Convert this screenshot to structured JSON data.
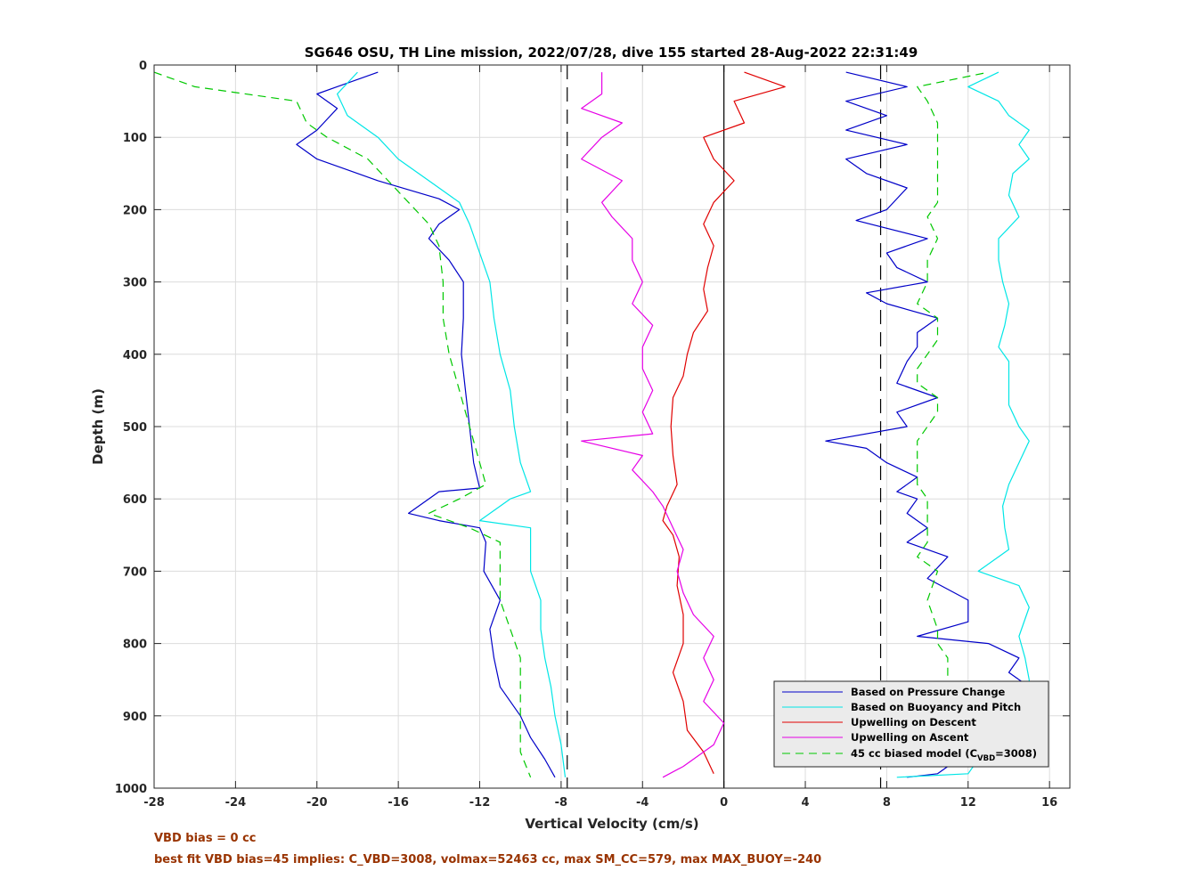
{
  "footer": {
    "line1": "VBD bias = 0 cc",
    "line2": "best fit VBD bias=45 implies: C_VBD=3008, volmax=52463 cc, max SM_CC=579, max MAX_BUOY=-240",
    "color": "#993300"
  },
  "chart_data": {
    "type": "line",
    "title": "SG646 OSU, TH Line mission, 2022/07/28, dive 155 started 28-Aug-2022 22:31:49",
    "xlabel": "Vertical Velocity (cm/s)",
    "ylabel": "Depth (m)",
    "xlim": [
      -28,
      17
    ],
    "ylim": [
      0,
      1000
    ],
    "y_reversed": true,
    "grid": true,
    "xticks": [
      -28,
      -24,
      -20,
      -16,
      -12,
      -8,
      -4,
      0,
      4,
      8,
      12,
      16
    ],
    "yticks": [
      0,
      100,
      200,
      300,
      400,
      500,
      600,
      700,
      800,
      900,
      1000
    ],
    "reference_lines": [
      {
        "x": -7.7,
        "style": "dashed",
        "color": "#000000"
      },
      {
        "x": 0,
        "style": "solid",
        "color": "#000000"
      },
      {
        "x": 7.7,
        "style": "dashed",
        "color": "#000000"
      }
    ],
    "legend": {
      "position": "bottom-right",
      "series_labels": [
        "Based on Pressure Change",
        "Based on Buoyancy and Pitch",
        "Upwelling on Descent",
        "Upwelling on Ascent"
      ],
      "biased_label_prefix": "45 cc biased model (C",
      "biased_label_sub": "VBD",
      "biased_label_suffix": "=3008)"
    },
    "series": [
      {
        "name": "Based on Pressure Change",
        "color": "#0000c8",
        "dash": false,
        "descent": [
          [
            -17,
            10
          ],
          [
            -20,
            40
          ],
          [
            -19,
            60
          ],
          [
            -20,
            90
          ],
          [
            -21,
            110
          ],
          [
            -20,
            130
          ],
          [
            -17,
            160
          ],
          [
            -14,
            185
          ],
          [
            -13,
            200
          ],
          [
            -14,
            220
          ],
          [
            -14.5,
            240
          ],
          [
            -13.5,
            270
          ],
          [
            -12.8,
            300
          ],
          [
            -12.8,
            350
          ],
          [
            -12.9,
            400
          ],
          [
            -12.7,
            450
          ],
          [
            -12.5,
            500
          ],
          [
            -12.3,
            550
          ],
          [
            -12,
            585
          ],
          [
            -14,
            590
          ],
          [
            -15.5,
            620
          ],
          [
            -14,
            630
          ],
          [
            -12,
            640
          ],
          [
            -11.7,
            660
          ],
          [
            -11.8,
            700
          ],
          [
            -11,
            740
          ],
          [
            -11.5,
            780
          ],
          [
            -11.3,
            820
          ],
          [
            -11,
            860
          ],
          [
            -10,
            900
          ],
          [
            -9.5,
            930
          ],
          [
            -8.8,
            960
          ],
          [
            -8.3,
            985
          ]
        ],
        "ascent": [
          [
            9,
            985
          ],
          [
            10.5,
            980
          ],
          [
            11.5,
            960
          ],
          [
            12,
            940
          ],
          [
            14,
            925
          ],
          [
            15.5,
            920
          ],
          [
            13,
            910
          ],
          [
            11,
            900
          ],
          [
            13,
            880
          ],
          [
            15,
            860
          ],
          [
            14,
            840
          ],
          [
            14.5,
            820
          ],
          [
            13,
            800
          ],
          [
            9.5,
            790
          ],
          [
            12,
            770
          ],
          [
            12,
            740
          ],
          [
            10,
            710
          ],
          [
            11,
            680
          ],
          [
            9,
            660
          ],
          [
            10,
            640
          ],
          [
            9,
            620
          ],
          [
            9.5,
            600
          ],
          [
            8.5,
            590
          ],
          [
            9.5,
            570
          ],
          [
            8,
            550
          ],
          [
            7,
            530
          ],
          [
            5,
            520
          ],
          [
            9,
            500
          ],
          [
            8.5,
            480
          ],
          [
            10.5,
            460
          ],
          [
            8.5,
            440
          ],
          [
            9,
            410
          ],
          [
            9.5,
            390
          ],
          [
            9.5,
            370
          ],
          [
            10.5,
            350
          ],
          [
            8,
            330
          ],
          [
            7,
            315
          ],
          [
            10,
            300
          ],
          [
            8.5,
            280
          ],
          [
            8,
            260
          ],
          [
            10,
            240
          ],
          [
            6.5,
            215
          ],
          [
            8,
            200
          ],
          [
            9,
            170
          ],
          [
            7,
            150
          ],
          [
            6,
            130
          ],
          [
            9,
            110
          ],
          [
            6,
            90
          ],
          [
            8,
            70
          ],
          [
            6,
            50
          ],
          [
            9,
            30
          ],
          [
            6,
            10
          ]
        ]
      },
      {
        "name": "Based on Buoyancy and Pitch",
        "color": "#00e6e6",
        "dash": false,
        "descent": [
          [
            -18,
            10
          ],
          [
            -19,
            40
          ],
          [
            -18.5,
            70
          ],
          [
            -17,
            100
          ],
          [
            -16,
            130
          ],
          [
            -14.5,
            160
          ],
          [
            -13,
            190
          ],
          [
            -12.5,
            220
          ],
          [
            -12,
            260
          ],
          [
            -11.5,
            300
          ],
          [
            -11.3,
            350
          ],
          [
            -11,
            400
          ],
          [
            -10.5,
            450
          ],
          [
            -10.3,
            500
          ],
          [
            -10,
            550
          ],
          [
            -9.5,
            590
          ],
          [
            -10.5,
            600
          ],
          [
            -12,
            630
          ],
          [
            -9.5,
            640
          ],
          [
            -9.5,
            700
          ],
          [
            -9,
            740
          ],
          [
            -9,
            780
          ],
          [
            -8.8,
            820
          ],
          [
            -8.5,
            860
          ],
          [
            -8.3,
            900
          ],
          [
            -8,
            940
          ],
          [
            -7.8,
            985
          ]
        ],
        "ascent": [
          [
            8.5,
            985
          ],
          [
            12,
            980
          ],
          [
            12.5,
            960
          ],
          [
            15,
            940
          ],
          [
            15.5,
            910
          ],
          [
            15,
            880
          ],
          [
            15,
            850
          ],
          [
            14.8,
            820
          ],
          [
            14.5,
            790
          ],
          [
            15,
            750
          ],
          [
            14.5,
            720
          ],
          [
            12.5,
            700
          ],
          [
            14,
            670
          ],
          [
            13.8,
            640
          ],
          [
            13.7,
            610
          ],
          [
            14,
            580
          ],
          [
            14.5,
            550
          ],
          [
            15,
            520
          ],
          [
            14.5,
            500
          ],
          [
            14,
            470
          ],
          [
            14,
            440
          ],
          [
            14,
            410
          ],
          [
            13.5,
            390
          ],
          [
            13.8,
            360
          ],
          [
            14,
            330
          ],
          [
            13.7,
            300
          ],
          [
            13.5,
            270
          ],
          [
            13.5,
            240
          ],
          [
            14.5,
            210
          ],
          [
            14,
            180
          ],
          [
            14.2,
            150
          ],
          [
            15,
            130
          ],
          [
            14.5,
            110
          ],
          [
            15,
            90
          ],
          [
            14,
            70
          ],
          [
            13.5,
            50
          ],
          [
            12,
            30
          ],
          [
            13.5,
            10
          ]
        ]
      },
      {
        "name": "Upwelling on Descent",
        "color": "#e00000",
        "dash": false,
        "descent": [
          [
            1,
            10
          ],
          [
            3,
            30
          ],
          [
            0.5,
            50
          ],
          [
            1,
            80
          ],
          [
            -1,
            100
          ],
          [
            -0.5,
            130
          ],
          [
            0.5,
            160
          ],
          [
            -0.5,
            190
          ],
          [
            -1,
            220
          ],
          [
            -0.5,
            250
          ],
          [
            -0.8,
            280
          ],
          [
            -1,
            310
          ],
          [
            -0.8,
            340
          ],
          [
            -1.5,
            370
          ],
          [
            -1.8,
            400
          ],
          [
            -2,
            430
          ],
          [
            -2.5,
            460
          ],
          [
            -2.6,
            500
          ],
          [
            -2.5,
            540
          ],
          [
            -2.3,
            580
          ],
          [
            -2.8,
            610
          ],
          [
            -3,
            630
          ],
          [
            -2.5,
            650
          ],
          [
            -2.2,
            680
          ],
          [
            -2.3,
            720
          ],
          [
            -2,
            760
          ],
          [
            -2,
            800
          ],
          [
            -2.5,
            840
          ],
          [
            -2,
            880
          ],
          [
            -1.8,
            920
          ],
          [
            -1,
            950
          ],
          [
            -0.5,
            980
          ]
        ]
      },
      {
        "name": "Upwelling on Ascent",
        "color": "#e600e6",
        "dash": false,
        "ascent": [
          [
            -6,
            10
          ],
          [
            -6,
            40
          ],
          [
            -7,
            60
          ],
          [
            -5,
            80
          ],
          [
            -6,
            100
          ],
          [
            -7,
            130
          ],
          [
            -5,
            160
          ],
          [
            -6,
            190
          ],
          [
            -5.5,
            210
          ],
          [
            -4.5,
            240
          ],
          [
            -4.5,
            270
          ],
          [
            -4,
            300
          ],
          [
            -4.5,
            330
          ],
          [
            -3.5,
            360
          ],
          [
            -4,
            390
          ],
          [
            -4,
            420
          ],
          [
            -3.5,
            450
          ],
          [
            -4,
            480
          ],
          [
            -3.5,
            510
          ],
          [
            -7,
            520
          ],
          [
            -4,
            540
          ],
          [
            -4.5,
            560
          ],
          [
            -3.5,
            590
          ],
          [
            -3,
            610
          ],
          [
            -2.5,
            640
          ],
          [
            -2,
            670
          ],
          [
            -2.3,
            700
          ],
          [
            -2,
            730
          ],
          [
            -1.5,
            760
          ],
          [
            -0.5,
            790
          ],
          [
            -1,
            820
          ],
          [
            -0.5,
            850
          ],
          [
            -1,
            880
          ],
          [
            0,
            910
          ],
          [
            -0.5,
            940
          ],
          [
            -2,
            970
          ],
          [
            -3,
            985
          ]
        ]
      },
      {
        "name": "45 cc biased model",
        "color": "#00c800",
        "dash": true,
        "descent": [
          [
            -28,
            10
          ],
          [
            -26,
            30
          ],
          [
            -21,
            50
          ],
          [
            -20.5,
            80
          ],
          [
            -19.5,
            100
          ],
          [
            -17.5,
            130
          ],
          [
            -16.5,
            160
          ],
          [
            -15.5,
            190
          ],
          [
            -14.5,
            220
          ],
          [
            -14,
            250
          ],
          [
            -13.8,
            300
          ],
          [
            -13.8,
            350
          ],
          [
            -13.5,
            400
          ],
          [
            -13,
            450
          ],
          [
            -12.5,
            500
          ],
          [
            -12,
            550
          ],
          [
            -11.7,
            580
          ],
          [
            -13,
            600
          ],
          [
            -14.5,
            620
          ],
          [
            -12.5,
            640
          ],
          [
            -11,
            660
          ],
          [
            -11,
            700
          ],
          [
            -11,
            740
          ],
          [
            -10.5,
            780
          ],
          [
            -10,
            820
          ],
          [
            -10,
            860
          ],
          [
            -10,
            900
          ],
          [
            -10,
            950
          ],
          [
            -9.5,
            985
          ]
        ],
        "ascent": [
          [
            11,
            970
          ],
          [
            11,
            950
          ],
          [
            12.5,
            920
          ],
          [
            12,
            900
          ],
          [
            11,
            880
          ],
          [
            11,
            860
          ],
          [
            11,
            820
          ],
          [
            10.5,
            800
          ],
          [
            10.5,
            780
          ],
          [
            10,
            740
          ],
          [
            10.5,
            700
          ],
          [
            9.5,
            680
          ],
          [
            10,
            660
          ],
          [
            10,
            640
          ],
          [
            10,
            620
          ],
          [
            10,
            600
          ],
          [
            9.5,
            580
          ],
          [
            9.5,
            560
          ],
          [
            9.5,
            540
          ],
          [
            9.5,
            520
          ],
          [
            10,
            500
          ],
          [
            10.5,
            480
          ],
          [
            10.5,
            460
          ],
          [
            9.5,
            440
          ],
          [
            9.5,
            420
          ],
          [
            10,
            400
          ],
          [
            10.5,
            380
          ],
          [
            10.5,
            350
          ],
          [
            9.5,
            330
          ],
          [
            10,
            300
          ],
          [
            10,
            270
          ],
          [
            10.5,
            240
          ],
          [
            10,
            210
          ],
          [
            10.5,
            190
          ],
          [
            10.5,
            160
          ],
          [
            10.5,
            130
          ],
          [
            10.5,
            100
          ],
          [
            10.5,
            80
          ],
          [
            10,
            50
          ],
          [
            9.5,
            30
          ],
          [
            13,
            10
          ]
        ]
      }
    ]
  }
}
